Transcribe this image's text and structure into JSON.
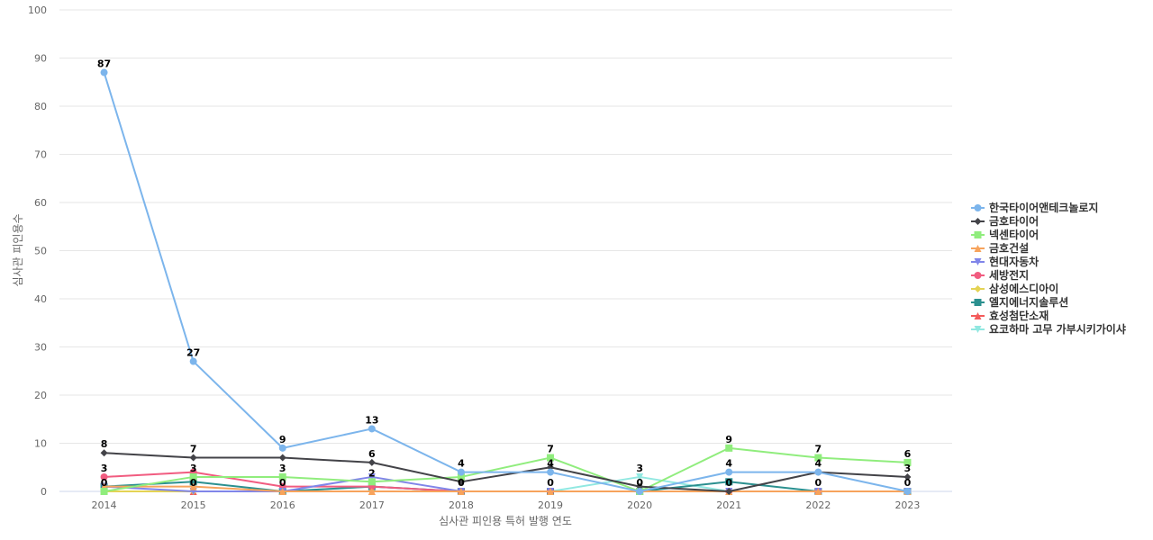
{
  "chart_data": {
    "type": "line",
    "title": "",
    "xlabel": "심사관 피인용 특허 발행 연도",
    "ylabel": "심사관 피인용수",
    "ylim": [
      0,
      100
    ],
    "yticks": [
      0,
      10,
      20,
      30,
      40,
      50,
      60,
      70,
      80,
      90,
      100
    ],
    "grid": true,
    "legend": "right",
    "x": [
      "2014",
      "2015",
      "2016",
      "2017",
      "2018",
      "2019",
      "2020",
      "2021",
      "2022",
      "2023"
    ],
    "series": [
      {
        "name": "한국타이어앤테크놀로지",
        "color": "#7cb5ec",
        "marker": "circle",
        "values": [
          87,
          27,
          9,
          13,
          4,
          4,
          0,
          4,
          4,
          0
        ],
        "labels": true
      },
      {
        "name": "금호타이어",
        "color": "#434348",
        "marker": "diamond",
        "values": [
          8,
          7,
          7,
          6,
          2,
          5,
          1,
          0,
          4,
          3
        ],
        "labels": true
      },
      {
        "name": "넥센타이어",
        "color": "#90ed7d",
        "marker": "square",
        "values": [
          0,
          3,
          3,
          2,
          3,
          7,
          0,
          9,
          7,
          6
        ],
        "labels": true
      },
      {
        "name": "금호건설",
        "color": "#f7a35c",
        "marker": "triangle",
        "values": [
          1,
          1,
          0,
          0,
          0,
          0,
          0,
          0,
          0,
          0
        ],
        "labels": false
      },
      {
        "name": "현대자동차",
        "color": "#8085e9",
        "marker": "triangle-down",
        "values": [
          1,
          0,
          0,
          3,
          0,
          0,
          0,
          0,
          0,
          0
        ],
        "labels": false
      },
      {
        "name": "세방전지",
        "color": "#f15c80",
        "marker": "circle",
        "values": [
          3,
          4,
          1,
          1,
          0,
          0,
          0,
          0,
          0,
          0
        ],
        "labels": false
      },
      {
        "name": "삼성에스디아이",
        "color": "#e4d354",
        "marker": "diamond",
        "values": [
          0,
          0,
          0,
          0,
          0,
          0,
          0,
          0,
          0,
          0
        ],
        "labels": false
      },
      {
        "name": "엘지에너지솔루션",
        "color": "#2b908f",
        "marker": "square",
        "values": [
          1,
          2,
          0,
          1,
          0,
          0,
          0,
          2,
          0,
          0
        ],
        "labels": false
      },
      {
        "name": "효성첨단소재",
        "color": "#f45b5b",
        "marker": "triangle",
        "values": [
          0,
          0,
          0,
          0,
          0,
          0,
          0,
          0,
          0,
          0
        ],
        "labels": false
      },
      {
        "name": "요코하마 고무 가부시키가이샤",
        "color": "#91e8e1",
        "marker": "triangle-down",
        "values": [
          0,
          0,
          0,
          1,
          0,
          0,
          3,
          0,
          0,
          0
        ],
        "labels": false
      }
    ],
    "data_labels": [
      {
        "x": "2014",
        "text": "87",
        "value": 87
      },
      {
        "x": "2014",
        "text": "8",
        "value": 8
      },
      {
        "x": "2014",
        "text": "3",
        "value": 3
      },
      {
        "x": "2014",
        "text": "0",
        "value": 0
      },
      {
        "x": "2015",
        "text": "27",
        "value": 27
      },
      {
        "x": "2015",
        "text": "7",
        "value": 7
      },
      {
        "x": "2015",
        "text": "3",
        "value": 3
      },
      {
        "x": "2015",
        "text": "0",
        "value": 0
      },
      {
        "x": "2016",
        "text": "9",
        "value": 9
      },
      {
        "x": "2016",
        "text": "3",
        "value": 3
      },
      {
        "x": "2016",
        "text": "0",
        "value": 0
      },
      {
        "x": "2017",
        "text": "13",
        "value": 13
      },
      {
        "x": "2017",
        "text": "6",
        "value": 6
      },
      {
        "x": "2017",
        "text": "2",
        "value": 2
      },
      {
        "x": "2018",
        "text": "4",
        "value": 4
      },
      {
        "x": "2018",
        "text": "0",
        "value": 0
      },
      {
        "x": "2019",
        "text": "7",
        "value": 7
      },
      {
        "x": "2019",
        "text": "4",
        "value": 4
      },
      {
        "x": "2019",
        "text": "0",
        "value": 0
      },
      {
        "x": "2020",
        "text": "3",
        "value": 3
      },
      {
        "x": "2020",
        "text": "0",
        "value": 0
      },
      {
        "x": "2021",
        "text": "9",
        "value": 9
      },
      {
        "x": "2021",
        "text": "4",
        "value": 4
      },
      {
        "x": "2021",
        "text": "0",
        "value": 0
      },
      {
        "x": "2022",
        "text": "7",
        "value": 7
      },
      {
        "x": "2022",
        "text": "4",
        "value": 4
      },
      {
        "x": "2022",
        "text": "0",
        "value": 0
      },
      {
        "x": "2023",
        "text": "6",
        "value": 6
      },
      {
        "x": "2023",
        "text": "3",
        "value": 3
      },
      {
        "x": "2023",
        "text": "0",
        "value": 0
      }
    ]
  }
}
